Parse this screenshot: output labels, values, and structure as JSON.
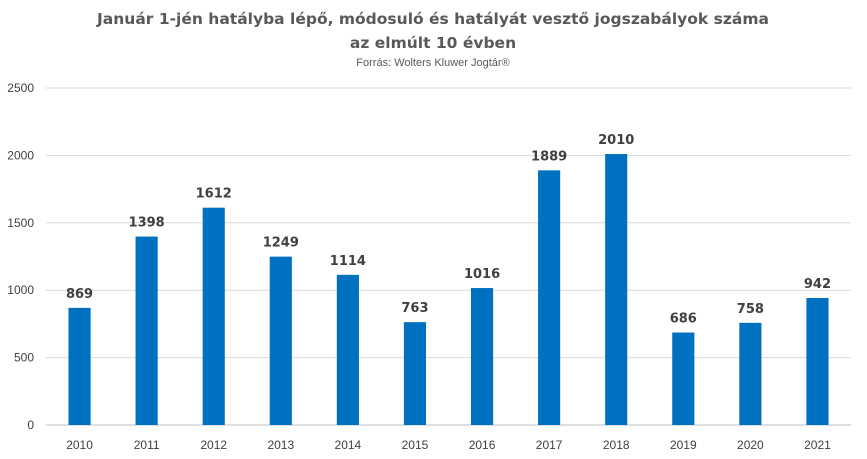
{
  "chart_data": {
    "type": "bar",
    "title_line1": "Január 1-jén hatályba lépő, módosuló és hatályát vesztő jogszabályok száma",
    "title_line2": "az elmúlt 10 évben",
    "subtitle": "Forrás: Wolters Kluwer Jogtár®",
    "categories": [
      "2010",
      "2011",
      "2012",
      "2013",
      "2014",
      "2015",
      "2016",
      "2017",
      "2018",
      "2019",
      "2020",
      "2021"
    ],
    "values": [
      869,
      1398,
      1612,
      1249,
      1114,
      763,
      1016,
      1889,
      2010,
      686,
      758,
      942
    ],
    "yticks": [
      0,
      500,
      1000,
      1500,
      2000,
      2500
    ],
    "ylim": [
      0,
      2500
    ],
    "grid": true,
    "legend": "none",
    "bar_color": "#0070C0"
  }
}
